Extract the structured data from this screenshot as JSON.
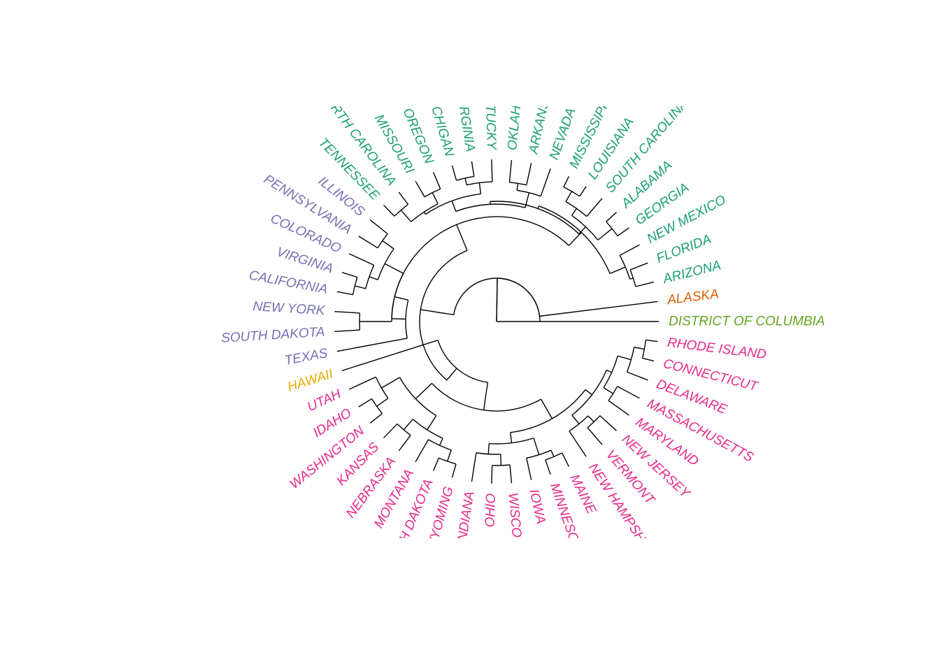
{
  "diagram": {
    "type": "circular-dendrogram",
    "leaves_counterclockwise": [
      {
        "label": "DISTRICT OF COLUMBIA",
        "cluster": "green"
      },
      {
        "label": "ALASKA",
        "cluster": "orange"
      },
      {
        "label": "ARIZONA",
        "cluster": "teal"
      },
      {
        "label": "FLORIDA",
        "cluster": "teal"
      },
      {
        "label": "NEW MEXICO",
        "cluster": "teal"
      },
      {
        "label": "GEORGIA",
        "cluster": "teal"
      },
      {
        "label": "ALABAMA",
        "cluster": "teal"
      },
      {
        "label": "SOUTH CAROLINA",
        "cluster": "teal"
      },
      {
        "label": "LOUISIANA",
        "cluster": "teal"
      },
      {
        "label": "MISSISSIPPI",
        "cluster": "teal"
      },
      {
        "label": "NEVADA",
        "cluster": "teal"
      },
      {
        "label": "ARKANSAS",
        "cluster": "teal"
      },
      {
        "label": "OKLAHOMA",
        "cluster": "teal"
      },
      {
        "label": "KENTUCKY",
        "cluster": "teal"
      },
      {
        "label": "WEST VIRGINIA",
        "cluster": "teal"
      },
      {
        "label": "MICHIGAN",
        "cluster": "teal"
      },
      {
        "label": "OREGON",
        "cluster": "teal"
      },
      {
        "label": "MISSOURI",
        "cluster": "teal"
      },
      {
        "label": "NORTH CAROLINA",
        "cluster": "teal"
      },
      {
        "label": "TENNESSEE",
        "cluster": "teal"
      },
      {
        "label": "ILLINOIS",
        "cluster": "purple"
      },
      {
        "label": "PENNSYLVANIA",
        "cluster": "purple"
      },
      {
        "label": "COLORADO",
        "cluster": "purple"
      },
      {
        "label": "VIRGINIA",
        "cluster": "purple"
      },
      {
        "label": "CALIFORNIA",
        "cluster": "purple"
      },
      {
        "label": "NEW YORK",
        "cluster": "purple"
      },
      {
        "label": "SOUTH DAKOTA",
        "cluster": "purple"
      },
      {
        "label": "TEXAS",
        "cluster": "purple"
      },
      {
        "label": "HAWAII",
        "cluster": "gold"
      },
      {
        "label": "UTAH",
        "cluster": "pink"
      },
      {
        "label": "IDAHO",
        "cluster": "pink"
      },
      {
        "label": "WASHINGTON",
        "cluster": "pink"
      },
      {
        "label": "KANSAS",
        "cluster": "pink"
      },
      {
        "label": "NEBRASKA",
        "cluster": "pink"
      },
      {
        "label": "MONTANA",
        "cluster": "pink"
      },
      {
        "label": "NORTH DAKOTA",
        "cluster": "pink"
      },
      {
        "label": "WYOMING",
        "cluster": "pink"
      },
      {
        "label": "INDIANA",
        "cluster": "pink"
      },
      {
        "label": "OHIO",
        "cluster": "pink"
      },
      {
        "label": "WISCONSIN",
        "cluster": "pink"
      },
      {
        "label": "IOWA",
        "cluster": "pink"
      },
      {
        "label": "MINNESOTA",
        "cluster": "pink"
      },
      {
        "label": "MAINE",
        "cluster": "pink"
      },
      {
        "label": "NEW HAMPSHIRE",
        "cluster": "pink"
      },
      {
        "label": "VERMONT",
        "cluster": "pink"
      },
      {
        "label": "NEW JERSEY",
        "cluster": "pink"
      },
      {
        "label": "MARYLAND",
        "cluster": "pink"
      },
      {
        "label": "MASSACHUSETTS",
        "cluster": "pink"
      },
      {
        "label": "DELAWARE",
        "cluster": "pink"
      },
      {
        "label": "CONNECTICUT",
        "cluster": "pink"
      },
      {
        "label": "RHODE ISLAND",
        "cluster": "pink"
      }
    ],
    "cluster_colors": {
      "green": "#66A61E",
      "orange": "#D95F02",
      "teal": "#1B9E77",
      "purple": "#7570B3",
      "gold": "#E6AB02",
      "pink": "#E7298A"
    },
    "branch_color": "#000000"
  }
}
